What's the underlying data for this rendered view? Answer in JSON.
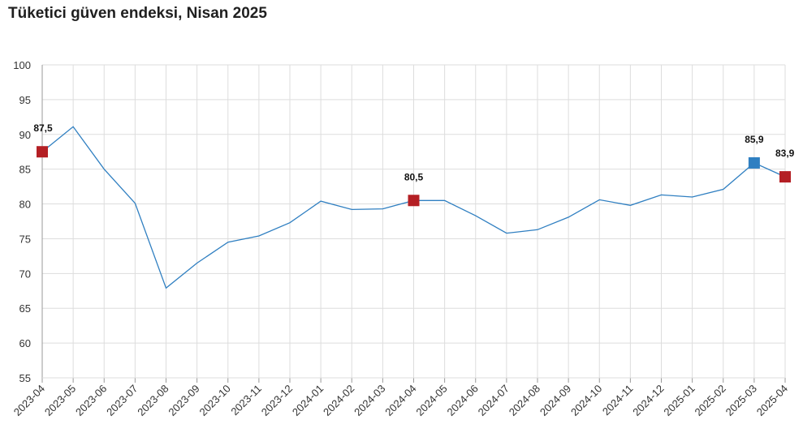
{
  "title": "Tüketici güven endeksi, Nisan 2025",
  "colors": {
    "line": "#2f7fc1",
    "highlight": "#b41f24",
    "current": "#2f7fc1",
    "grid": "#dddddd",
    "axis": "#999999"
  },
  "chart_data": {
    "type": "line",
    "title": "Tüketici güven endeksi, Nisan 2025",
    "xlabel": "",
    "ylabel": "",
    "ylim": [
      55,
      100
    ],
    "yticks": [
      55,
      60,
      65,
      70,
      75,
      80,
      85,
      90,
      95,
      100
    ],
    "grid": true,
    "categories": [
      "2023-04",
      "2023-05",
      "2023-06",
      "2023-07",
      "2023-08",
      "2023-09",
      "2023-10",
      "2023-11",
      "2023-12",
      "2024-01",
      "2024-02",
      "2024-03",
      "2024-04",
      "2024-05",
      "2024-06",
      "2024-07",
      "2024-08",
      "2024-09",
      "2024-10",
      "2024-11",
      "2024-12",
      "2025-01",
      "2025-02",
      "2025-03",
      "2025-04"
    ],
    "series": [
      {
        "values": [
          87.5,
          91.1,
          85.0,
          80.1,
          67.9,
          71.5,
          74.5,
          75.4,
          77.3,
          80.4,
          79.2,
          79.3,
          80.5,
          80.5,
          78.3,
          75.8,
          76.3,
          78.1,
          80.6,
          79.8,
          81.3,
          81.0,
          82.1,
          85.9,
          83.9
        ]
      }
    ],
    "markers": [
      {
        "index": 0,
        "label": "87,5",
        "color": "#b41f24"
      },
      {
        "index": 12,
        "label": "80,5",
        "color": "#b41f24"
      },
      {
        "index": 23,
        "label": "85,9",
        "color": "#2f7fc1"
      },
      {
        "index": 24,
        "label": "83,9",
        "color": "#b41f24"
      }
    ]
  }
}
